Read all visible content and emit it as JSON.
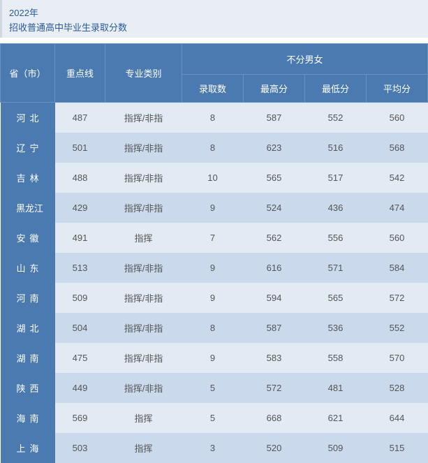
{
  "header": {
    "year": "2022年",
    "subtitle": "招收普通高中毕业生录取分数"
  },
  "table": {
    "columns": {
      "province": "省（市）",
      "keyline": "重点线",
      "major": "专业类别",
      "group": "不分男女",
      "admit": "录取数",
      "max": "最高分",
      "min": "最低分",
      "avg": "平均分"
    },
    "rows": [
      {
        "province": "河 北",
        "province_spaced": true,
        "keyline": "487",
        "major": "指挥/非指",
        "admit": "8",
        "max": "587",
        "min": "552",
        "avg": "560"
      },
      {
        "province": "辽 宁",
        "province_spaced": true,
        "keyline": "501",
        "major": "指挥/非指",
        "admit": "8",
        "max": "623",
        "min": "516",
        "avg": "568"
      },
      {
        "province": "吉 林",
        "province_spaced": true,
        "keyline": "488",
        "major": "指挥/非指",
        "admit": "10",
        "max": "565",
        "min": "517",
        "avg": "542"
      },
      {
        "province": "黑龙江",
        "province_spaced": false,
        "keyline": "429",
        "major": "指挥/非指",
        "admit": "9",
        "max": "524",
        "min": "436",
        "avg": "474"
      },
      {
        "province": "安 徽",
        "province_spaced": true,
        "keyline": "491",
        "major": "指挥",
        "admit": "7",
        "max": "562",
        "min": "556",
        "avg": "560"
      },
      {
        "province": "山 东",
        "province_spaced": true,
        "keyline": "513",
        "major": "指挥/非指",
        "admit": "9",
        "max": "616",
        "min": "571",
        "avg": "584"
      },
      {
        "province": "河 南",
        "province_spaced": true,
        "keyline": "509",
        "major": "指挥/非指",
        "admit": "9",
        "max": "594",
        "min": "565",
        "avg": "572"
      },
      {
        "province": "湖 北",
        "province_spaced": true,
        "keyline": "504",
        "major": "指挥/非指",
        "admit": "8",
        "max": "587",
        "min": "536",
        "avg": "552"
      },
      {
        "province": "湖 南",
        "province_spaced": true,
        "keyline": "475",
        "major": "指挥/非指",
        "admit": "9",
        "max": "583",
        "min": "558",
        "avg": "570"
      },
      {
        "province": "陕 西",
        "province_spaced": true,
        "keyline": "449",
        "major": "指挥/非指",
        "admit": "5",
        "max": "572",
        "min": "481",
        "avg": "528"
      },
      {
        "province": "海 南",
        "province_spaced": true,
        "keyline": "569",
        "major": "指挥",
        "admit": "5",
        "max": "668",
        "min": "621",
        "avg": "644"
      },
      {
        "province": "上 海",
        "province_spaced": true,
        "keyline": "503",
        "major": "指挥",
        "admit": "3",
        "max": "520",
        "min": "509",
        "avg": "515"
      }
    ]
  },
  "colors": {
    "header_bg": "#4a7ab0",
    "header_text": "#ffffff",
    "row_odd": "#e2ebf4",
    "row_even": "#cad9eb",
    "title_bg": "#e8eef4",
    "title_text": "#2a5a9a"
  }
}
